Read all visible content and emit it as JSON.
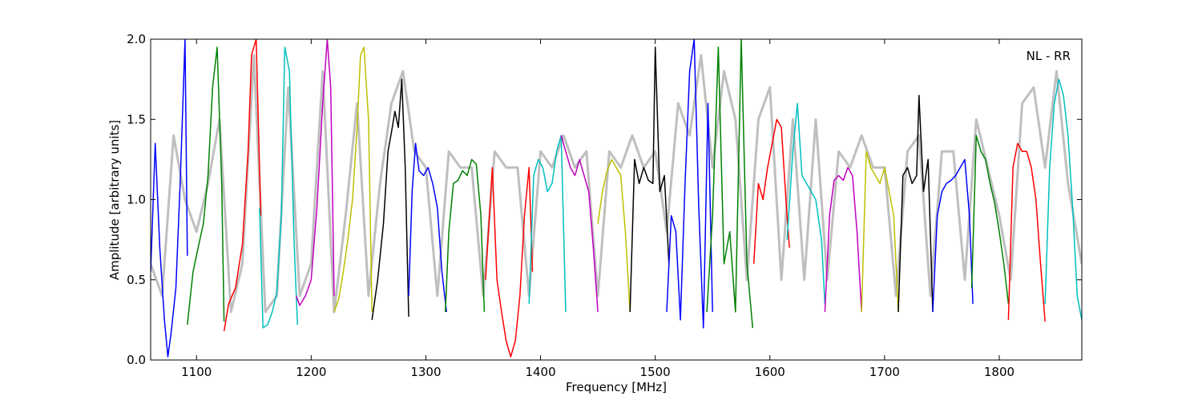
{
  "chart_data": {
    "type": "line",
    "title": "",
    "xlabel": "Frequency [MHz]",
    "ylabel": "Amplitude [arbitrary units]",
    "xlim": [
      1060,
      1872
    ],
    "ylim": [
      0.0,
      2.0
    ],
    "xticks": [
      1100,
      1200,
      1300,
      1400,
      1500,
      1600,
      1700,
      1800
    ],
    "yticks": [
      0.0,
      0.5,
      1.0,
      1.5,
      2.0
    ],
    "xtick_labels": [
      "1100",
      "1200",
      "1300",
      "1400",
      "1500",
      "1600",
      "1700",
      "1800"
    ],
    "ytick_labels": [
      "0.0",
      "0.5",
      "1.0",
      "1.5",
      "2.0"
    ],
    "grid": false,
    "annotation": "NL - RR",
    "background_series": {
      "color": "#bfbfbf",
      "x": [
        1060,
        1070,
        1080,
        1090,
        1100,
        1110,
        1120,
        1130,
        1140,
        1150,
        1160,
        1170,
        1180,
        1190,
        1200,
        1210,
        1220,
        1230,
        1240,
        1250,
        1260,
        1270,
        1280,
        1290,
        1300,
        1310,
        1320,
        1330,
        1340,
        1350,
        1360,
        1370,
        1380,
        1390,
        1400,
        1410,
        1420,
        1430,
        1440,
        1450,
        1460,
        1470,
        1480,
        1490,
        1500,
        1510,
        1520,
        1530,
        1540,
        1550,
        1560,
        1570,
        1580,
        1590,
        1600,
        1610,
        1620,
        1630,
        1640,
        1650,
        1660,
        1670,
        1680,
        1690,
        1700,
        1710,
        1720,
        1730,
        1740,
        1750,
        1760,
        1770,
        1780,
        1790,
        1800,
        1810,
        1820,
        1830,
        1840,
        1850,
        1860,
        1872
      ],
      "values": [
        0.6,
        0.4,
        1.4,
        1.0,
        0.8,
        1.1,
        1.5,
        0.3,
        0.6,
        1.9,
        0.3,
        0.4,
        1.7,
        0.4,
        0.6,
        1.8,
        0.3,
        0.9,
        1.6,
        0.4,
        1.1,
        1.6,
        1.8,
        1.3,
        1.2,
        0.4,
        1.3,
        1.2,
        1.2,
        0.4,
        1.3,
        1.2,
        1.2,
        0.4,
        1.3,
        1.2,
        1.4,
        1.2,
        1.3,
        0.4,
        1.3,
        1.2,
        1.4,
        1.2,
        1.3,
        0.8,
        1.6,
        1.4,
        1.9,
        1.2,
        1.8,
        1.5,
        0.5,
        1.5,
        1.7,
        0.5,
        1.5,
        0.5,
        1.5,
        0.5,
        1.3,
        1.2,
        1.4,
        1.2,
        1.2,
        0.4,
        1.3,
        1.4,
        0.4,
        1.3,
        1.3,
        0.5,
        1.5,
        1.2,
        0.9,
        0.5,
        1.6,
        1.7,
        1.2,
        1.8,
        1.1,
        0.6
      ]
    },
    "series": [
      {
        "color": "#0000ff",
        "x": [
          1060,
          1064,
          1068,
          1072,
          1075,
          1078,
          1082,
          1086,
          1090,
          1092
        ],
        "values": [
          0.55,
          1.35,
          0.7,
          0.25,
          0.02,
          0.18,
          0.45,
          1.15,
          2.0,
          0.65
        ]
      },
      {
        "color": "#008000",
        "x": [
          1092,
          1097,
          1102,
          1106,
          1110,
          1114,
          1118,
          1122,
          1124
        ],
        "values": [
          0.22,
          0.55,
          0.72,
          0.85,
          1.15,
          1.7,
          1.95,
          1.1,
          0.24
        ]
      },
      {
        "color": "#ff0000",
        "x": [
          1124,
          1128,
          1134,
          1140,
          1145,
          1148,
          1152,
          1156
        ],
        "values": [
          0.18,
          0.35,
          0.45,
          0.72,
          1.3,
          1.9,
          2.0,
          0.9
        ]
      },
      {
        "color": "#00bfbf",
        "x": [
          1155,
          1158,
          1162,
          1166,
          1170,
          1174,
          1177,
          1181,
          1185,
          1188
        ],
        "values": [
          0.95,
          0.2,
          0.22,
          0.3,
          0.42,
          0.9,
          1.95,
          1.8,
          0.75,
          0.22
        ]
      },
      {
        "color": "#bf00bf",
        "x": [
          1187,
          1190,
          1195,
          1200,
          1205,
          1210,
          1214,
          1217,
          1220
        ],
        "values": [
          0.4,
          0.34,
          0.4,
          0.5,
          0.95,
          1.6,
          2.0,
          1.7,
          0.4
        ]
      },
      {
        "color": "#bfbf00",
        "x": [
          1220,
          1224,
          1228,
          1232,
          1236,
          1240,
          1243,
          1246,
          1250,
          1253
        ],
        "values": [
          0.3,
          0.38,
          0.55,
          0.75,
          1.0,
          1.45,
          1.9,
          1.95,
          1.5,
          0.3
        ]
      },
      {
        "color": "#000000",
        "x": [
          1253,
          1258,
          1263,
          1267,
          1270,
          1273,
          1276,
          1279,
          1282,
          1285
        ],
        "values": [
          0.25,
          0.5,
          0.85,
          1.3,
          1.42,
          1.55,
          1.45,
          1.75,
          1.2,
          0.27
        ]
      },
      {
        "color": "#0000ff",
        "x": [
          1285,
          1288,
          1291,
          1294,
          1298,
          1302,
          1306,
          1310,
          1314,
          1318
        ],
        "values": [
          0.4,
          1.05,
          1.35,
          1.18,
          1.15,
          1.2,
          1.1,
          0.95,
          0.55,
          0.3
        ]
      },
      {
        "color": "#008000",
        "x": [
          1317,
          1320,
          1324,
          1328,
          1332,
          1336,
          1340,
          1344,
          1348,
          1351
        ],
        "values": [
          0.3,
          0.8,
          1.1,
          1.12,
          1.18,
          1.15,
          1.25,
          1.22,
          0.9,
          0.3
        ]
      },
      {
        "color": "#ff0000",
        "x": [
          1352,
          1358,
          1362,
          1366,
          1370,
          1374,
          1378,
          1382,
          1386,
          1390,
          1393
        ],
        "values": [
          0.5,
          1.2,
          0.5,
          0.3,
          0.12,
          0.02,
          0.12,
          0.4,
          0.9,
          1.2,
          0.55
        ]
      },
      {
        "color": "#00bfbf",
        "x": [
          1390,
          1394,
          1398,
          1402,
          1406,
          1410,
          1414,
          1418,
          1422
        ],
        "values": [
          0.35,
          1.15,
          1.25,
          1.2,
          1.05,
          1.1,
          1.3,
          1.4,
          0.3
        ]
      },
      {
        "color": "#bf00bf",
        "x": [
          1418,
          1422,
          1426,
          1430,
          1434,
          1438,
          1442,
          1446,
          1450
        ],
        "values": [
          1.4,
          1.3,
          1.2,
          1.15,
          1.25,
          1.15,
          1.05,
          0.7,
          0.3
        ]
      },
      {
        "color": "#bfbf00",
        "x": [
          1450,
          1454,
          1458,
          1462,
          1466,
          1470,
          1474,
          1478
        ],
        "values": [
          0.85,
          1.05,
          1.18,
          1.25,
          1.2,
          1.15,
          0.8,
          0.3
        ]
      },
      {
        "color": "#000000",
        "x": [
          1478,
          1482,
          1486,
          1490,
          1494,
          1498,
          1500,
          1504,
          1508,
          1512
        ],
        "values": [
          0.3,
          1.25,
          1.1,
          1.2,
          1.12,
          1.1,
          1.95,
          1.05,
          1.15,
          0.6
        ]
      },
      {
        "color": "#0000ff",
        "x": [
          1510,
          1514,
          1518,
          1522,
          1526,
          1530,
          1534,
          1538,
          1542,
          1546,
          1550
        ],
        "values": [
          0.3,
          0.9,
          0.8,
          0.25,
          1.1,
          1.8,
          2.0,
          0.95,
          0.2,
          1.6,
          0.3
        ]
      },
      {
        "color": "#008000",
        "x": [
          1545,
          1550,
          1555,
          1560,
          1565,
          1570,
          1575,
          1580,
          1585
        ],
        "values": [
          0.3,
          0.9,
          1.95,
          0.6,
          0.8,
          0.3,
          2.0,
          0.6,
          0.2
        ]
      },
      {
        "color": "#ff0000",
        "x": [
          1586,
          1590,
          1594,
          1598,
          1602,
          1606,
          1610,
          1614,
          1617
        ],
        "values": [
          0.6,
          1.1,
          1.0,
          1.2,
          1.35,
          1.5,
          1.45,
          1.0,
          0.7
        ]
      },
      {
        "color": "#00bfbf",
        "x": [
          1615,
          1620,
          1624,
          1628,
          1632,
          1636,
          1640,
          1645,
          1648
        ],
        "values": [
          0.75,
          1.3,
          1.6,
          1.15,
          1.1,
          1.05,
          1.0,
          0.75,
          0.35
        ]
      },
      {
        "color": "#bf00bf",
        "x": [
          1648,
          1652,
          1656,
          1660,
          1664,
          1668,
          1672,
          1676,
          1680
        ],
        "values": [
          0.3,
          0.9,
          1.12,
          1.15,
          1.12,
          1.2,
          1.15,
          0.8,
          0.3
        ]
      },
      {
        "color": "#bfbf00",
        "x": [
          1680,
          1684,
          1688,
          1692,
          1696,
          1700,
          1704,
          1708,
          1712
        ],
        "values": [
          0.3,
          1.3,
          1.2,
          1.15,
          1.1,
          1.2,
          1.05,
          0.9,
          0.3
        ]
      },
      {
        "color": "#000000",
        "x": [
          1712,
          1716,
          1720,
          1724,
          1728,
          1730,
          1734,
          1738,
          1742
        ],
        "values": [
          0.3,
          1.15,
          1.2,
          1.1,
          1.15,
          1.65,
          1.05,
          1.25,
          0.3
        ]
      },
      {
        "color": "#0000ff",
        "x": [
          1742,
          1746,
          1750,
          1754,
          1758,
          1762,
          1766,
          1770,
          1774,
          1777
        ],
        "values": [
          0.3,
          0.9,
          1.05,
          1.1,
          1.12,
          1.15,
          1.2,
          1.25,
          0.9,
          0.35
        ]
      },
      {
        "color": "#008000",
        "x": [
          1776,
          1780,
          1784,
          1788,
          1792,
          1796,
          1800,
          1804,
          1808
        ],
        "values": [
          0.45,
          1.4,
          1.3,
          1.25,
          1.1,
          0.98,
          0.8,
          0.6,
          0.35
        ]
      },
      {
        "color": "#ff0000",
        "x": [
          1808,
          1812,
          1816,
          1820,
          1824,
          1828,
          1832,
          1836,
          1840
        ],
        "values": [
          0.25,
          1.2,
          1.35,
          1.3,
          1.3,
          1.2,
          1.0,
          0.6,
          0.24
        ]
      },
      {
        "color": "#00bfbf",
        "x": [
          1840,
          1844,
          1848,
          1852,
          1856,
          1860,
          1864,
          1868,
          1872
        ],
        "values": [
          0.35,
          1.2,
          1.6,
          1.75,
          1.65,
          1.4,
          0.95,
          0.4,
          0.25
        ]
      }
    ]
  }
}
